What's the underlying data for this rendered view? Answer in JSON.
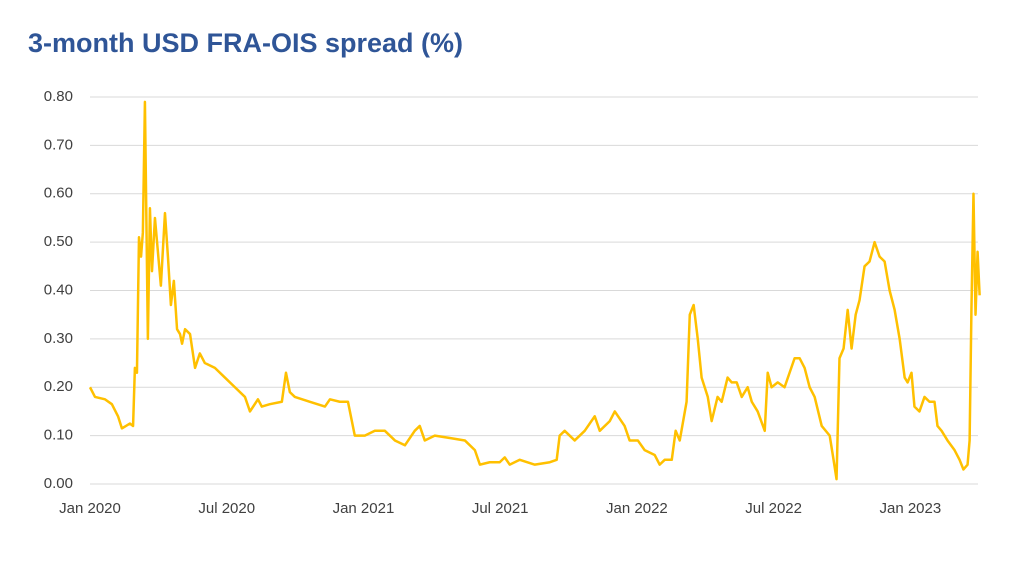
{
  "chart_data": {
    "type": "line",
    "title": "3-month USD FRA-OIS spread (%)",
    "x": [
      0,
      0.22,
      0.66,
      0.96,
      1.23,
      1.4,
      1.58,
      1.75,
      1.89,
      1.97,
      2.06,
      2.15,
      2.24,
      2.32,
      2.41,
      2.46,
      2.54,
      2.63,
      2.72,
      2.85,
      2.98,
      3.11,
      3.29,
      3.42,
      3.55,
      3.68,
      3.82,
      3.95,
      4.04,
      4.17,
      4.39,
      4.61,
      4.82,
      5.04,
      5.48,
      5.92,
      6.36,
      6.8,
      7.02,
      7.37,
      7.54,
      7.89,
      8.42,
      8.6,
      8.77,
      8.99,
      9.65,
      10.31,
      10.53,
      10.96,
      11.32,
      11.62,
      12.06,
      12.5,
      12.94,
      13.38,
      13.82,
      14.25,
      14.47,
      14.69,
      15.13,
      15.79,
      16.45,
      16.89,
      17.11,
      17.54,
      17.98,
      18.2,
      18.42,
      18.86,
      19.52,
      20.18,
      20.48,
      20.61,
      20.83,
      21.27,
      21.71,
      22.15,
      22.37,
      22.81,
      23.03,
      23.46,
      23.68,
      24.04,
      24.34,
      24.78,
      25,
      25.22,
      25.53,
      25.7,
      25.88,
      26.18,
      26.32,
      26.49,
      26.67,
      26.84,
      27.11,
      27.28,
      27.54,
      27.72,
      27.98,
      28.16,
      28.38,
      28.6,
      28.86,
      29.04,
      29.3,
      29.61,
      29.74,
      29.91,
      30.18,
      30.48,
      30.7,
      30.92,
      31.14,
      31.36,
      31.58,
      31.8,
      32.11,
      32.46,
      32.63,
      32.76,
      32.89,
      33.07,
      33.25,
      33.42,
      33.6,
      33.77,
      33.99,
      34.21,
      34.43,
      34.65,
      34.87,
      35.09,
      35.31,
      35.53,
      35.75,
      35.88,
      36.05,
      36.18,
      36.4,
      36.62,
      36.84,
      37.06,
      37.19,
      37.37,
      37.63,
      37.94,
      38.16,
      38.33,
      38.51,
      38.6,
      38.68,
      38.77,
      38.86,
      38.95,
      39.04
    ],
    "series": [
      {
        "color": "#ffc000",
        "values": [
          0.2,
          0.18,
          0.175,
          0.165,
          0.14,
          0.115,
          0.12,
          0.125,
          0.12,
          0.24,
          0.23,
          0.51,
          0.47,
          0.52,
          0.79,
          0.6,
          0.3,
          0.57,
          0.44,
          0.55,
          0.48,
          0.41,
          0.56,
          0.47,
          0.37,
          0.42,
          0.32,
          0.31,
          0.29,
          0.32,
          0.31,
          0.24,
          0.27,
          0.25,
          0.24,
          0.22,
          0.2,
          0.18,
          0.15,
          0.175,
          0.16,
          0.165,
          0.17,
          0.23,
          0.19,
          0.18,
          0.17,
          0.16,
          0.175,
          0.17,
          0.17,
          0.1,
          0.1,
          0.11,
          0.11,
          0.09,
          0.08,
          0.11,
          0.12,
          0.09,
          0.1,
          0.095,
          0.09,
          0.07,
          0.04,
          0.045,
          0.045,
          0.055,
          0.04,
          0.05,
          0.04,
          0.045,
          0.05,
          0.1,
          0.11,
          0.09,
          0.11,
          0.14,
          0.11,
          0.13,
          0.15,
          0.12,
          0.09,
          0.09,
          0.07,
          0.06,
          0.04,
          0.05,
          0.05,
          0.11,
          0.09,
          0.17,
          0.35,
          0.37,
          0.3,
          0.22,
          0.18,
          0.13,
          0.18,
          0.17,
          0.22,
          0.21,
          0.21,
          0.18,
          0.2,
          0.17,
          0.15,
          0.11,
          0.23,
          0.2,
          0.21,
          0.2,
          0.23,
          0.26,
          0.26,
          0.24,
          0.2,
          0.18,
          0.12,
          0.1,
          0.05,
          0.01,
          0.26,
          0.28,
          0.36,
          0.28,
          0.35,
          0.38,
          0.45,
          0.46,
          0.5,
          0.47,
          0.46,
          0.4,
          0.36,
          0.3,
          0.22,
          0.21,
          0.23,
          0.16,
          0.15,
          0.18,
          0.17,
          0.17,
          0.12,
          0.11,
          0.09,
          0.07,
          0.05,
          0.03,
          0.04,
          0.09,
          0.36,
          0.6,
          0.35,
          0.48,
          0.39
        ]
      }
    ],
    "xlim": [
      0,
      39.1
    ],
    "xticks": [
      {
        "value": 0,
        "label": "Jan 2020"
      },
      {
        "value": 6,
        "label": "Jul 2020"
      },
      {
        "value": 12,
        "label": "Jan 2021"
      },
      {
        "value": 18,
        "label": "Jul 2021"
      },
      {
        "value": 24,
        "label": "Jan 2022"
      },
      {
        "value": 30,
        "label": "Jul 2022"
      },
      {
        "value": 36,
        "label": "Jan 2023"
      }
    ],
    "ylim": [
      0,
      0.8
    ],
    "yticks": [
      {
        "value": 0,
        "label": "0.00"
      },
      {
        "value": 0.1,
        "label": "0.10"
      },
      {
        "value": 0.2,
        "label": "0.20"
      },
      {
        "value": 0.3,
        "label": "0.30"
      },
      {
        "value": 0.4,
        "label": "0.40"
      },
      {
        "value": 0.5,
        "label": "0.50"
      },
      {
        "value": 0.6,
        "label": "0.60"
      },
      {
        "value": 0.7,
        "label": "0.70"
      },
      {
        "value": 0.8,
        "label": "0.80"
      }
    ],
    "grid": true
  }
}
